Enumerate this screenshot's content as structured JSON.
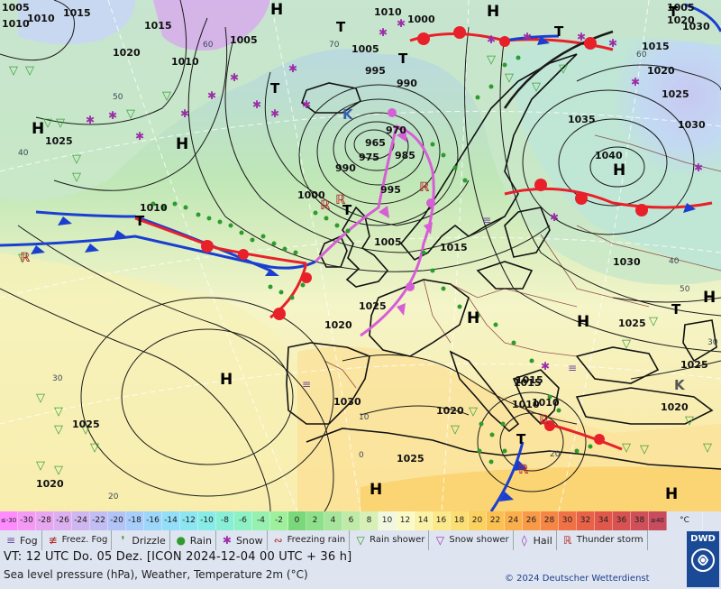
{
  "map": {
    "iso_labels": [
      {
        "t": "1005"
      },
      {
        "t": "1015"
      },
      {
        "t": "1010"
      },
      {
        "t": "1015"
      },
      {
        "t": "1020"
      },
      {
        "t": "1010"
      },
      {
        "t": "1005"
      },
      {
        "t": "1010"
      },
      {
        "t": "1000"
      },
      {
        "t": "1005"
      },
      {
        "t": "995"
      },
      {
        "t": "990"
      },
      {
        "t": "965"
      },
      {
        "t": "970"
      },
      {
        "t": "975"
      },
      {
        "t": "985"
      },
      {
        "t": "990"
      },
      {
        "t": "995"
      },
      {
        "t": "1000"
      },
      {
        "t": "1010"
      },
      {
        "t": "1005"
      },
      {
        "t": "1015"
      },
      {
        "t": "1020"
      },
      {
        "t": "1025"
      },
      {
        "t": "1025"
      },
      {
        "t": "1030"
      },
      {
        "t": "1020"
      },
      {
        "t": "1025"
      },
      {
        "t": "1010"
      },
      {
        "t": "1015"
      },
      {
        "t": "1010"
      },
      {
        "t": "1015"
      },
      {
        "t": "1035"
      },
      {
        "t": "1040"
      },
      {
        "t": "1030"
      },
      {
        "t": "1030"
      },
      {
        "t": "1025"
      },
      {
        "t": "1020"
      },
      {
        "t": "1025"
      },
      {
        "t": "1020"
      },
      {
        "t": "1025"
      },
      {
        "t": "1030"
      },
      {
        "t": "1020"
      },
      {
        "t": "1005"
      },
      {
        "t": "1010"
      },
      {
        "t": "1015"
      },
      {
        "t": "1025"
      },
      {
        "t": "1020"
      }
    ],
    "pressure_centers": [
      {
        "t": "H"
      },
      {
        "t": "H"
      },
      {
        "t": "H"
      },
      {
        "t": "H"
      },
      {
        "t": "H"
      },
      {
        "t": "H"
      },
      {
        "t": "H"
      },
      {
        "t": "H"
      },
      {
        "t": "H"
      },
      {
        "t": "H"
      },
      {
        "t": "H"
      },
      {
        "t": "T"
      },
      {
        "t": "T"
      },
      {
        "t": "T"
      },
      {
        "t": "T"
      },
      {
        "t": "T"
      },
      {
        "t": "T"
      },
      {
        "t": "T"
      },
      {
        "t": "T"
      },
      {
        "t": "T"
      },
      {
        "t": "K"
      },
      {
        "t": "K"
      }
    ],
    "temp_labels": [
      {
        "t": "50"
      },
      {
        "t": "40"
      },
      {
        "t": "30"
      },
      {
        "t": "20"
      },
      {
        "t": "60"
      },
      {
        "t": "70"
      },
      {
        "t": "60"
      },
      {
        "t": "50"
      },
      {
        "t": "40"
      },
      {
        "t": "30"
      },
      {
        "t": "20"
      },
      {
        "t": "0"
      },
      {
        "t": "10"
      }
    ]
  },
  "scale": {
    "cells": [
      {
        "v": "≤-30",
        "c": "#ff8cff"
      },
      {
        "v": "-30",
        "c": "#f49af5"
      },
      {
        "v": "-28",
        "c": "#e8a6f0"
      },
      {
        "v": "-26",
        "c": "#dcaff0"
      },
      {
        "v": "-24",
        "c": "#cfb6f0"
      },
      {
        "v": "-22",
        "c": "#c2bdf3"
      },
      {
        "v": "-20",
        "c": "#b2c3f7"
      },
      {
        "v": "-18",
        "c": "#a7cdfb"
      },
      {
        "v": "-16",
        "c": "#9dd6fb"
      },
      {
        "v": "-14",
        "c": "#93def8"
      },
      {
        "v": "-12",
        "c": "#8be6f2"
      },
      {
        "v": "-10",
        "c": "#88ece6"
      },
      {
        "v": "-8",
        "c": "#88efd6"
      },
      {
        "v": "-6",
        "c": "#8ef1c4"
      },
      {
        "v": "-4",
        "c": "#96f1b0"
      },
      {
        "v": "-2",
        "c": "#9ef09c"
      },
      {
        "v": "0",
        "c": "#7ad87a"
      },
      {
        "v": "2",
        "c": "#8fe08a"
      },
      {
        "v": "4",
        "c": "#a6e59b"
      },
      {
        "v": "6",
        "c": "#bfeaa8"
      },
      {
        "v": "8",
        "c": "#d6f0b5"
      },
      {
        "v": "10",
        "c": "#f2f7e0"
      },
      {
        "v": "12",
        "c": "#fafac8"
      },
      {
        "v": "14",
        "c": "#fbf2a8"
      },
      {
        "v": "16",
        "c": "#fbe98b"
      },
      {
        "v": "18",
        "c": "#fbdf74"
      },
      {
        "v": "20",
        "c": "#fbd160"
      },
      {
        "v": "22",
        "c": "#fbc052"
      },
      {
        "v": "24",
        "c": "#fbae4c"
      },
      {
        "v": "26",
        "c": "#f99a48"
      },
      {
        "v": "28",
        "c": "#f58646"
      },
      {
        "v": "30",
        "c": "#ef7246"
      },
      {
        "v": "32",
        "c": "#e86248"
      },
      {
        "v": "34",
        "c": "#e0584c"
      },
      {
        "v": "36",
        "c": "#d85252"
      },
      {
        "v": "38",
        "c": "#cf5058"
      },
      {
        "v": "≥40",
        "c": "#c64c5e"
      }
    ],
    "unit": "°C"
  },
  "legend": [
    {
      "icon": "fog-icon",
      "glyph": "≡",
      "label": "Fog",
      "two": false
    },
    {
      "icon": "freezing-fog-icon",
      "glyph": "≢",
      "label": "Freez. Fog",
      "two": true
    },
    {
      "icon": "drizzle-icon",
      "glyph": "❜",
      "label": "Drizzle",
      "two": false
    },
    {
      "icon": "rain-icon",
      "glyph": "●",
      "label": "Rain",
      "two": false
    },
    {
      "icon": "snow-icon",
      "glyph": "✱",
      "label": "Snow",
      "two": false
    },
    {
      "icon": "freezing-rain-icon",
      "glyph": "∾",
      "label": "Freezing rain",
      "two": true
    },
    {
      "icon": "rain-shower-icon",
      "glyph": "▽",
      "label": "Rain shower",
      "two": true
    },
    {
      "icon": "snow-shower-icon",
      "glyph": "▽",
      "label": "Snow shower",
      "two": true
    },
    {
      "icon": "hail-icon",
      "glyph": "◊",
      "label": "Hail",
      "two": false
    },
    {
      "icon": "thunderstorm-icon",
      "glyph": "ℝ",
      "label": "Thunder storm",
      "two": true
    }
  ],
  "info": {
    "line1": "VT: 12 UTC Do.  05 Dez. [ICON 2024-12-04  00 UTC + 36 h]",
    "line2": "Sea level pressure (hPa), Weather, Temperature 2m (°C)",
    "copyright": "© 2024 Deutscher Wetterdienst",
    "logo": "DWD"
  },
  "colors": {
    "warm_front": "#e8202a",
    "cold_front": "#1a3fd0",
    "occlusion": "#d65fd6",
    "isobar": "#1b1b1b",
    "land_border": "#7a2a2a"
  }
}
